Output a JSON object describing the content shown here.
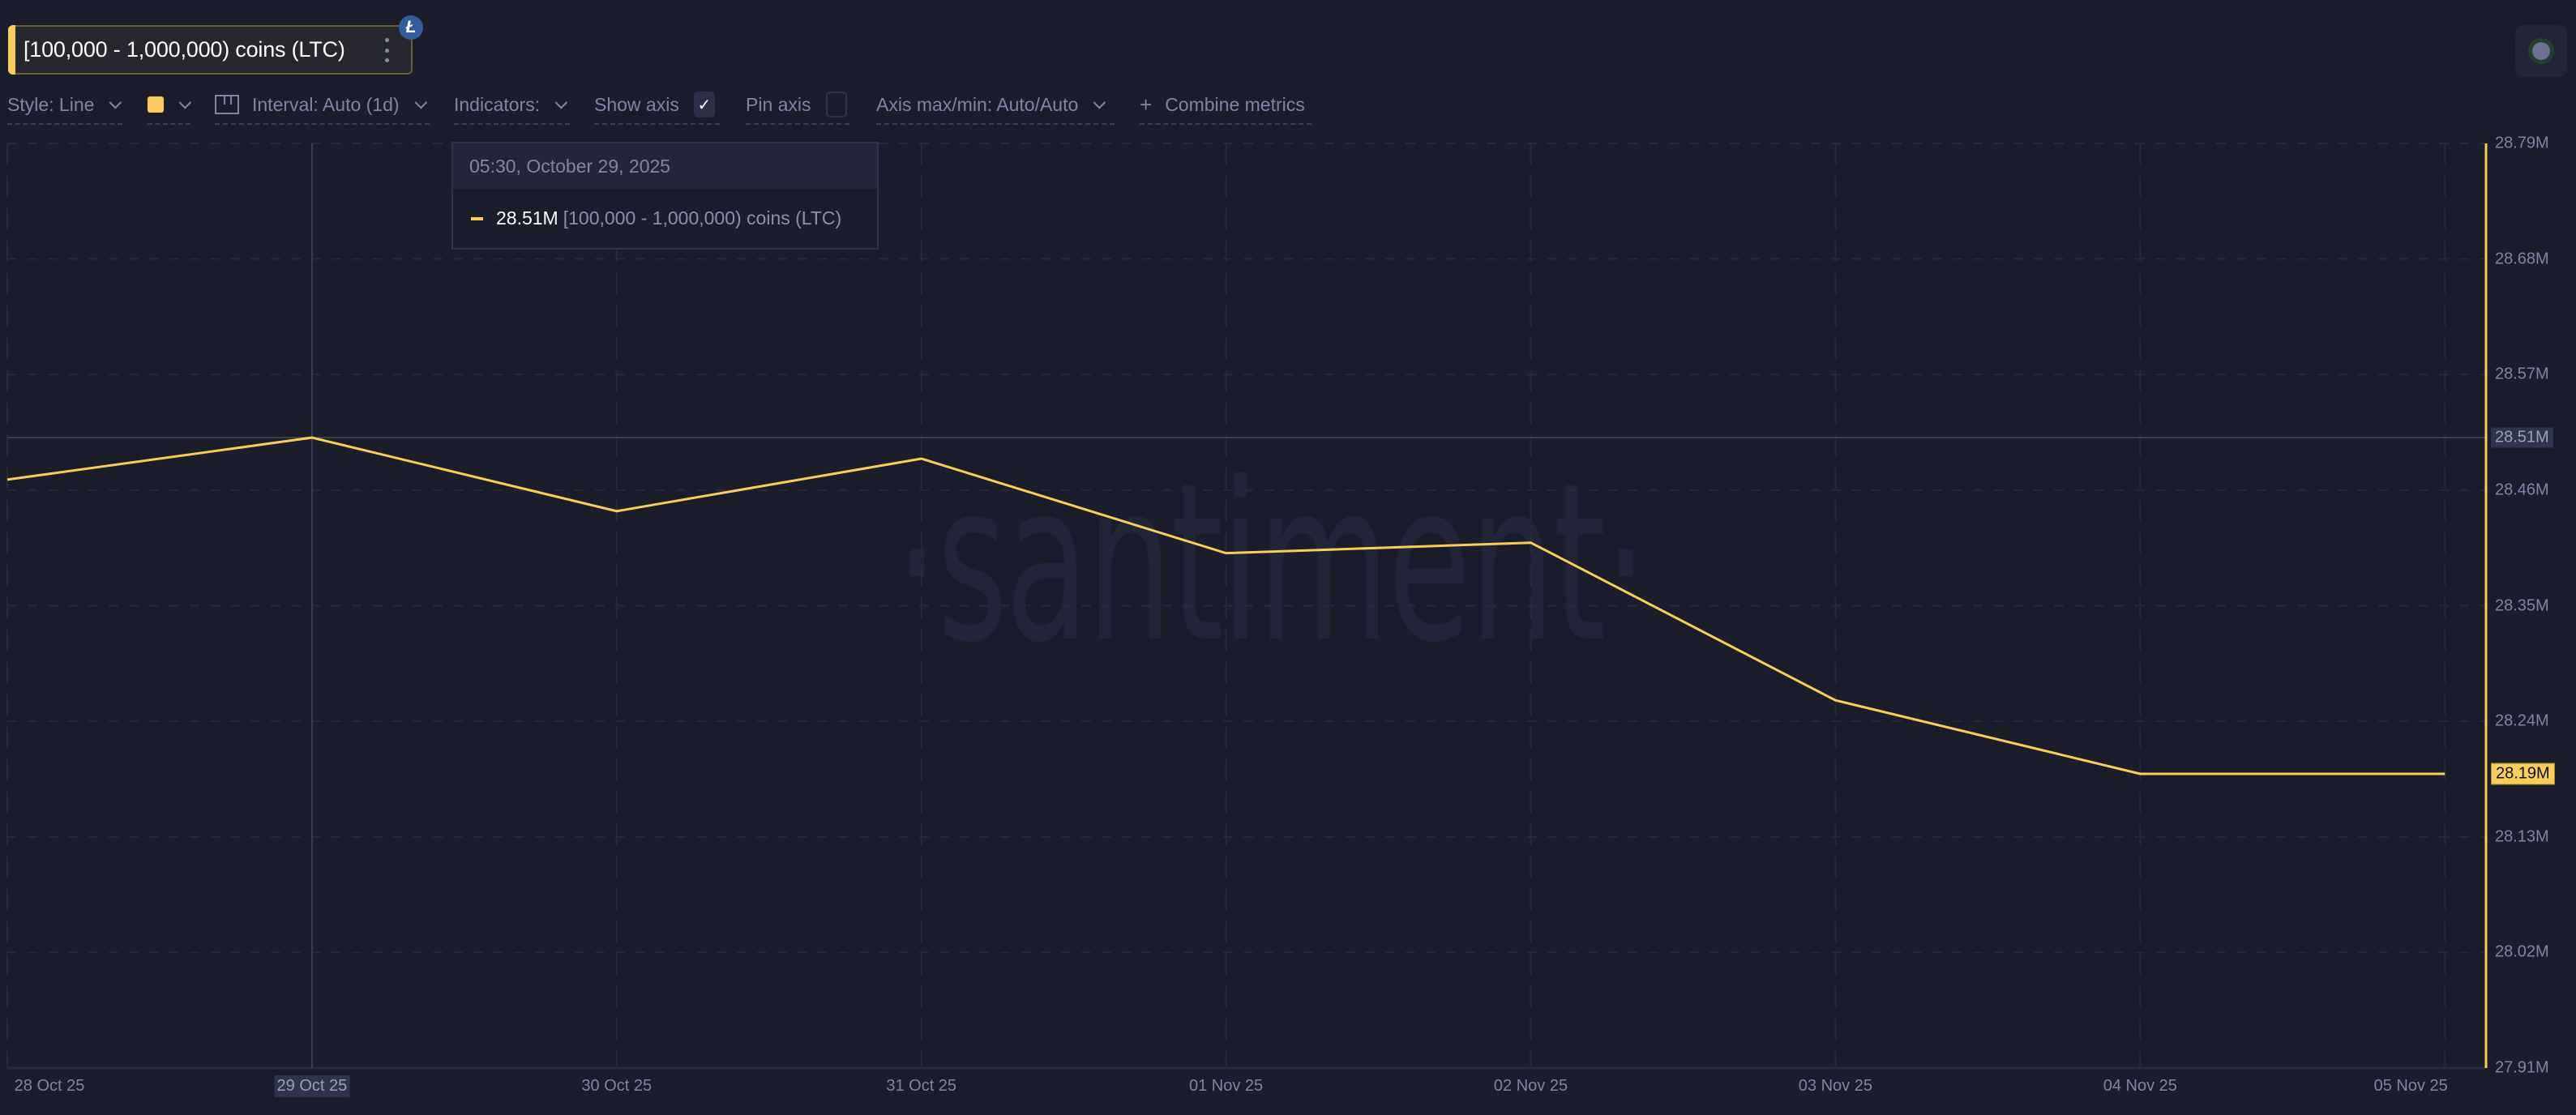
{
  "metric": {
    "label": "[100,000 - 1,000,000) coins (LTC)",
    "asset_badge": "Ł",
    "color": "#f7cd5b",
    "menu_icon": "kebab-menu-icon"
  },
  "toolbar": {
    "style": "Style: Line",
    "interval": "Interval: Auto (1d)",
    "indicators": "Indicators:",
    "show_axis": "Show axis",
    "show_axis_checked": true,
    "show_axis_check": "✓",
    "pin_axis": "Pin axis",
    "pin_axis_checked": false,
    "axis_maxmin": "Axis max/min: Auto/Auto",
    "combine_plus": "+",
    "combine": "Combine metrics"
  },
  "tooltip": {
    "datetime": "05:30, October 29, 2025",
    "value": "28.51M",
    "series_name": "[100,000  - 1,000,000) coins (LTC)"
  },
  "crosshair": {
    "x_label": "29 Oct 25",
    "y_label": "28.51M"
  },
  "last_value_label": "28.19M",
  "watermark": "·santiment·",
  "chart_data": {
    "type": "line",
    "title": "[100,000 - 1,000,000) coins (LTC)",
    "xlabel": "",
    "ylabel": "",
    "x": [
      "28 Oct 25",
      "29 Oct 25",
      "30 Oct 25",
      "31 Oct 25",
      "01 Nov 25",
      "02 Nov 25",
      "03 Nov 25",
      "04 Nov 25",
      "05 Nov 25"
    ],
    "series": [
      {
        "name": "[100,000 - 1,000,000) coins (LTC)",
        "color": "#f7cd5b",
        "values": [
          28.47,
          28.51,
          28.44,
          28.49,
          28.4,
          28.41,
          28.26,
          28.19,
          28.19
        ],
        "unit": "M"
      }
    ],
    "y_ticks": [
      "28.79M",
      "28.68M",
      "28.57M",
      "28.46M",
      "28.35M",
      "28.24M",
      "28.13M",
      "28.02M",
      "27.91M"
    ],
    "ylim": [
      27.91,
      28.79
    ],
    "y_axis_position": "right",
    "grid": true,
    "legend": "none"
  }
}
